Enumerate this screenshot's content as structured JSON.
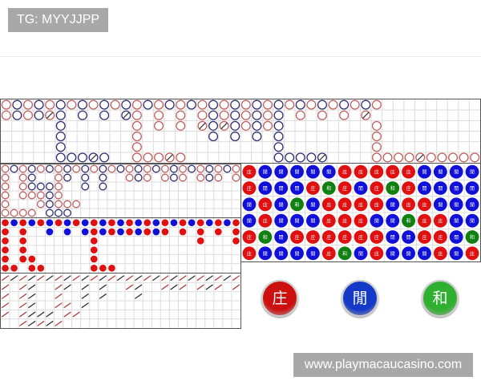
{
  "header": {
    "tag": "TG: MYYJJPP"
  },
  "watermark": "www.playmacaucasino.com",
  "colors": {
    "banker": "#e01010",
    "player": "#1010d8",
    "tie": "#108010",
    "hollow_red": "#c06060",
    "hollow_blue": "#303070",
    "grid": "#dddddd"
  },
  "legend_note": "r = banker, b = player, R/B = with tie slash, g = tie, . = empty",
  "big_road": {
    "cols": 44,
    "rows": [
      "rbrbrbrbrbrbrbrbrbrbrbrbrbrbrbrbrbr.........",
      "rbrbRb.b.b.Br.r.r.rbrbrbrb.r.r.r.R.........",
      ".....b......r.r.r.RbRbrbrb........r.........",
      ".....b......r......b.b.b.b........r.........",
      ".....b......r............b........r.........",
      ".....bbbBb..rrrRr........bbbbB....rrrrRrrrrr"
    ]
  },
  "big_eye_road": {
    "cols": 27,
    "rows": [
      "rbrbrbrbrbrbrbrbrbrbrbrbrbr",
      "r.rb..rb.b.b..rbr.rbr.rbr.r",
      "r.rbbbr..b.b...............",
      "r.rrrbr....................",
      "r...rbrrr..................",
      "rrrr.bbb..................."
    ]
  },
  "small_road": {
    "cols": 27,
    "rows": [
      "rbrbrbrbrbrbrbrbrbrbrbrbrbr",
      "r.r..b.b.brbrbrbrbr.r.r.r.r",
      "r.r.......r...........r...r",
      "r.r.......r................",
      "r.rr......r................",
      "rr.rr.....rrr.............."
    ]
  },
  "cockroach_road": {
    "cols": 27,
    "rows": [
      "rbrbrbrbrbrbrbrbrbrbrbrbrbr",
      "r.rb..rb.b.b..rb..rbr.rbr.r",
      "r.rb..r..b.b...b...........",
      "r.rb..rr.b.................",
      "r.rbbb.rr..................",
      "..rbrbr...................."
    ]
  },
  "bead_plate": {
    "cols": 15,
    "labels": {
      "r": "庄",
      "b": "閒",
      "g": "和"
    },
    "rows": [
      "rbbbbbrrrrrbbbb",
      "rbbbrgrbrgrbbbb",
      "brbgbrrrrbrrbbb",
      "brbbbrrrbbgrrbb",
      "rgbrrrrrrbbrrbg",
      "rbbbbrgbrbbbrbr"
    ]
  },
  "buttons": [
    {
      "label": "庄",
      "color": "#cc1010"
    },
    {
      "label": "閒",
      "color": "#1438c8"
    },
    {
      "label": "和",
      "color": "#30b030"
    }
  ]
}
